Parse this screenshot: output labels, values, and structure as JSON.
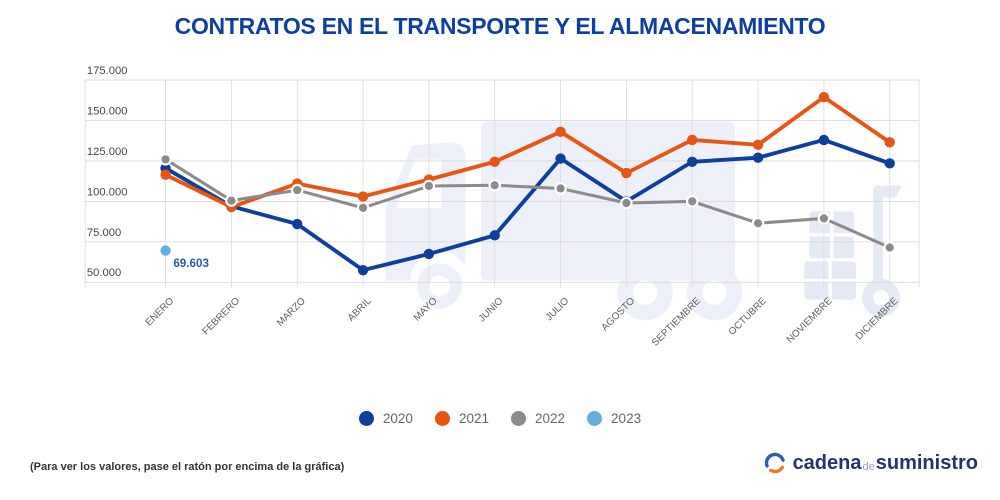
{
  "title": "CONTRATOS EN EL TRANSPORTE Y EL ALMACENAMIENTO",
  "footer": {
    "note": "(Para ver los valores, pase el ratón por encima de la gráfica)",
    "logo": {
      "word1": "cadena",
      "word2": "de",
      "word3": "suministro"
    }
  },
  "chart_data": {
    "type": "line",
    "title": "CONTRATOS EN EL TRANSPORTE Y EL ALMACENAMIENTO",
    "categories": [
      "ENERO",
      "FEBRERO",
      "MARZO",
      "ABRIL",
      "MAYO",
      "JUNIO",
      "JULIO",
      "AGOSTO",
      "SEPTIEMBRE",
      "OCTUBRE",
      "NOVIEMBRE",
      "DICIEMBRE"
    ],
    "series": [
      {
        "name": "2020",
        "color": "#0d3f9c",
        "line_width": 4.5,
        "marker_ring": false,
        "values": [
          120500,
          97000,
          86000,
          57500,
          67500,
          79000,
          126500,
          100000,
          124500,
          127000,
          138000,
          123500
        ]
      },
      {
        "name": "2021",
        "color": "#e85412",
        "line_width": 4.5,
        "marker_ring": false,
        "values": [
          116500,
          96500,
          111000,
          103000,
          113500,
          124500,
          143000,
          117500,
          138000,
          135000,
          164500,
          136500
        ]
      },
      {
        "name": "2022",
        "color": "#8b8b8b",
        "line_width": 3.5,
        "marker_ring": true,
        "values": [
          126000,
          100500,
          107000,
          96000,
          109500,
          110000,
          108000,
          99000,
          100000,
          86500,
          89500,
          71500
        ]
      },
      {
        "name": "2023",
        "color": "#62afdf",
        "line_width": 4.5,
        "marker_ring": false,
        "values": [
          69603,
          null,
          null,
          null,
          null,
          null,
          null,
          null,
          null,
          null,
          null,
          null
        ]
      }
    ],
    "y_axis": {
      "min": 50000,
      "max": 175000,
      "tick_step": 25000,
      "ticks": [
        {
          "value": 175000,
          "label": "175.000"
        },
        {
          "value": 150000,
          "label": "150.000"
        },
        {
          "value": 125000,
          "label": "125.000"
        },
        {
          "value": 100000,
          "label": "100.000"
        },
        {
          "value": 75000,
          "label": "75.000"
        },
        {
          "value": 50000,
          "label": "50.000"
        }
      ]
    },
    "annotations": [
      {
        "series": "2023",
        "category": "ENERO",
        "text": "69.603",
        "color": "#2a5ba6"
      }
    ],
    "grid": true,
    "legend_position": "bottom"
  }
}
